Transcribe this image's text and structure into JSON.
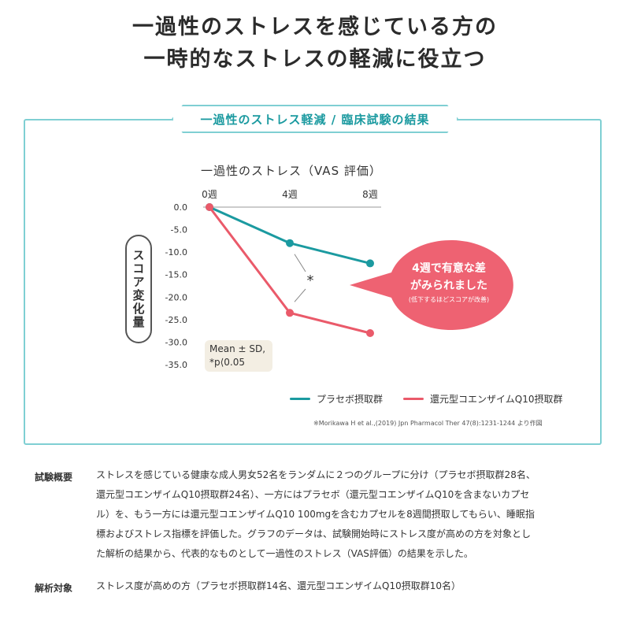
{
  "headline": {
    "line1": "一過性のストレスを感じている方の",
    "line2": "一時的なストレスの軽減に役立つ"
  },
  "panel_title": "一過性のストレス軽減 / 臨床試験の結果",
  "colors": {
    "placebo": "#1b9aa0",
    "coq10": "#ea5a6a",
    "panel_border": "#7fcfd3",
    "callout": "#ee6272",
    "note_bg": "#f3eee3"
  },
  "chart_data": {
    "type": "line",
    "title": "一過性のストレス（VAS 評価）",
    "ylabel": "スコア変化量",
    "x": [
      "0週",
      "4週",
      "8週"
    ],
    "y_ticks": [
      "0.0",
      "-5.0",
      "-10.0",
      "-15.0",
      "-20.0",
      "-25.0",
      "-30.0",
      "-35.0"
    ],
    "ylim": [
      -35,
      0
    ],
    "series": [
      {
        "name": "プラセボ摂取群",
        "color": "#1b9aa0",
        "values": [
          0,
          -8,
          -12.5
        ]
      },
      {
        "name": "還元型コエンザイムQ10摂取群",
        "color": "#ea5a6a",
        "values": [
          0,
          -23.5,
          -28
        ]
      }
    ],
    "significance_marker": "*",
    "note_line1": "Mean ± SD,",
    "note_line2": "*p⟨0.05",
    "callout": {
      "line1": "4週で有意な差",
      "line2": "がみられました",
      "line3": "(低下するほどスコアが改善)"
    },
    "source": "※Morikawa H et al.,(2019) Jpn Pharmacol Ther 47(8):1231-1244 より作図"
  },
  "info": {
    "overview_label": "試験概要",
    "overview_lines": [
      "ストレスを感じている健康な成人男女52名をランダムに２つのグループに分け（プラセボ摂取群28名、",
      "還元型コエンザイムQ10摂取群24名）、一方にはプラセボ（還元型コエンザイムQ10を含まないカプセ",
      "ル）を、もう一方には還元型コエンザイムQ10 100mgを含むカプセルを8週間摂取してもらい、睡眠指",
      "標およびストレス指標を評価した。グラフのデータは、試験開始時にストレス度が高めの方を対象とし",
      "た解析の結果から、代表的なものとして一過性のストレス（VAS評価）の結果を示した。"
    ],
    "target_label": "解析対象",
    "target_text": "ストレス度が高めの方（プラセボ摂取群14名、還元型コエンザイムQ10摂取群10名）"
  }
}
